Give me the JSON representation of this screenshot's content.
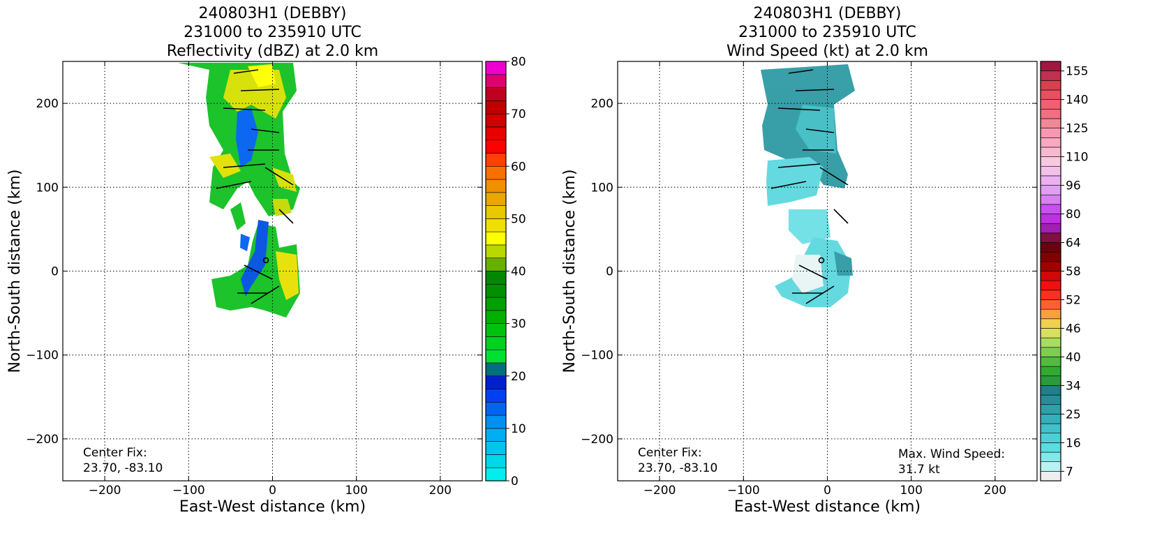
{
  "chart_data": [
    {
      "type": "radar",
      "title": "240803H1 (DEBBY)",
      "subtitle": "231000 to 235910 UTC",
      "field_label": "Reflectivity (dBZ) at 2.0 km",
      "x_label": "East-West distance (km)",
      "y_label": "North-South distance (km)",
      "xlim": [
        -250,
        250
      ],
      "ylim": [
        -250,
        250
      ],
      "xticks": [
        {
          "value": -200,
          "label": "−200"
        },
        {
          "value": -100,
          "label": "−100"
        },
        0,
        100,
        200
      ],
      "yticks": [
        {
          "value": -200,
          "label": "−200"
        },
        {
          "value": -100,
          "label": "−100"
        },
        0,
        100,
        200
      ],
      "grid": true,
      "annotations": [
        "Center Fix:",
        "23.70, -83.10"
      ],
      "colorbar": {
        "bounds": [
          0,
          2.5,
          5,
          7.5,
          10,
          12.5,
          15,
          17.5,
          20,
          22.5,
          25,
          27.5,
          30,
          32.5,
          35,
          37.5,
          40,
          42.5,
          45,
          47.5,
          50,
          52.5,
          55,
          57.5,
          60,
          62.5,
          65,
          67.5,
          70,
          72.5,
          75,
          77.5,
          80
        ],
        "colors": [
          "#00eeee",
          "#00d8ea",
          "#00c4f0",
          "#00aef2",
          "#0090f4",
          "#0066f0",
          "#0040f0",
          "#0020d0",
          "#00707a",
          "#00e030",
          "#00d020",
          "#00c010",
          "#00b000",
          "#00a000",
          "#009000",
          "#008800",
          "#66b000",
          "#b8d800",
          "#ffff00",
          "#f0e000",
          "#e8c800",
          "#e8a800",
          "#f09000",
          "#f87000",
          "#ff4000",
          "#ff0000",
          "#e80000",
          "#d00000",
          "#c00000",
          "#c00020",
          "#e00070",
          "#f000d0",
          "#d040e0",
          "#a050d0",
          "#704090",
          "#402050",
          "#000000"
        ],
        "ticks": [
          0,
          10,
          20,
          30,
          40,
          50,
          60,
          70,
          80
        ]
      }
    },
    {
      "type": "radar",
      "title": "240803H1 (DEBBY)",
      "subtitle": "231000 to 235910 UTC",
      "field_label": "Wind Speed (kt) at 2.0 km",
      "x_label": "East-West distance (km)",
      "y_label": "North-South distance (km)",
      "xlim": [
        -250,
        250
      ],
      "ylim": [
        -250,
        250
      ],
      "xticks": [
        {
          "value": -200,
          "label": "−200"
        },
        {
          "value": -100,
          "label": "−100"
        },
        0,
        100,
        200
      ],
      "yticks": [
        {
          "value": -200,
          "label": "−200"
        },
        {
          "value": -100,
          "label": "−100"
        },
        0,
        100,
        200
      ],
      "grid": true,
      "annotations": [
        "Center Fix:",
        "23.70, -83.10",
        "Max. Wind Speed:",
        "31.7 kt"
      ],
      "colorbar": {
        "bounds": [
          4,
          7,
          10,
          13,
          16,
          19,
          22,
          25,
          28,
          31,
          34,
          36,
          38,
          40,
          42,
          44,
          46,
          48,
          50,
          52,
          54,
          56,
          58,
          60,
          62,
          64,
          69,
          75,
          80,
          85,
          91,
          96,
          101,
          106,
          110,
          115,
          120,
          125,
          130,
          135,
          140,
          145,
          150,
          155,
          160
        ],
        "colors": [
          "#eeeeee",
          "#b8f2f2",
          "#84e8e8",
          "#5cdce0",
          "#4cd0d6",
          "#40c0c8",
          "#36b0b8",
          "#2ea0a8",
          "#268e98",
          "#1e808a",
          "#2a9a3a",
          "#30aa30",
          "#50bb40",
          "#80cc50",
          "#a8dd60",
          "#d8e060",
          "#f0d050",
          "#f8a040",
          "#ff6030",
          "#ff3020",
          "#f01010",
          "#d00808",
          "#a00000",
          "#800000",
          "#6a0010",
          "#801040",
          "#a020b0",
          "#c030e0",
          "#c850f0",
          "#d880f0",
          "#e0a0f0",
          "#eab0f0",
          "#f2c0e8",
          "#f8c8e0",
          "#f8b8d0",
          "#f8a8c0",
          "#f898b0",
          "#f08898",
          "#f07080",
          "#f06070",
          "#e85060",
          "#d84050",
          "#c03050",
          "#a01840"
        ],
        "ticks": [
          7,
          16,
          25,
          34,
          40,
          46,
          52,
          58,
          64,
          80,
          96,
          110,
          125,
          140,
          155
        ]
      }
    }
  ]
}
